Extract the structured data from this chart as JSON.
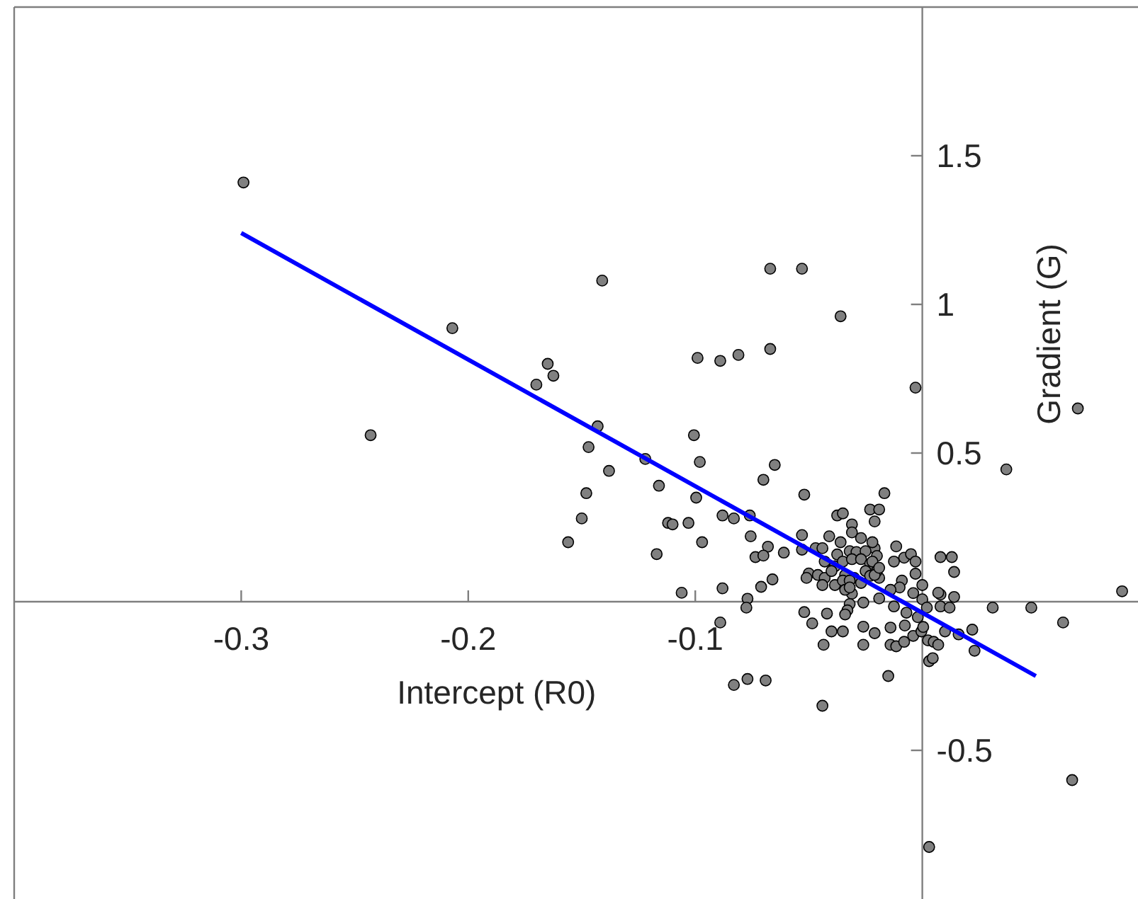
{
  "chart_data": {
    "type": "scatter",
    "xlabel": "Intercept (R0)",
    "ylabel": "Gradient (G)",
    "xlim": [
      -0.4,
      0.095
    ],
    "ylim": [
      -1,
      2
    ],
    "xticks": [
      -0.3,
      -0.2,
      -0.1
    ],
    "yticks": [
      -0.5,
      0.5,
      1,
      1.5
    ],
    "grid": false,
    "marker": "circle",
    "series": [
      {
        "color": "#808080",
        "x": [
          -0.299,
          -0.243,
          -0.207,
          -0.165,
          -0.1625,
          -0.17,
          -0.141,
          -0.143,
          -0.147,
          -0.1006,
          -0.099,
          -0.089,
          -0.081,
          -0.067,
          -0.067,
          -0.053,
          -0.036,
          -0.003,
          0.0685,
          -0.138,
          -0.122,
          -0.098,
          -0.065,
          -0.07,
          -0.148,
          -0.116,
          -0.0996,
          -0.052,
          -0.0167,
          -0.15,
          -0.156,
          -0.117,
          -0.112,
          -0.11,
          -0.103,
          -0.097,
          -0.088,
          -0.083,
          -0.076,
          -0.0756,
          -0.068,
          -0.0735,
          -0.07,
          -0.061,
          -0.066,
          -0.071,
          -0.088,
          -0.106,
          -0.077,
          -0.0775,
          -0.089,
          -0.083,
          -0.077,
          -0.069,
          -0.044,
          -0.052,
          -0.0485,
          -0.042,
          -0.04,
          -0.035,
          -0.0435,
          -0.026,
          -0.021,
          -0.026,
          -0.014,
          -0.014,
          -0.0115,
          -0.008,
          -0.015,
          -0.0077,
          -0.004,
          -0.0004,
          0.0004,
          0.0025,
          0.005,
          0.007,
          0.003,
          0.0046,
          0.01,
          0.016,
          0.022,
          0.023,
          0.031,
          0.048,
          0.062,
          0.088,
          0.037,
          0.008,
          0.013,
          0.014,
          0.014,
          0.008,
          0.007,
          0.008,
          0.012,
          0,
          -0.003,
          -0.004,
          0,
          0.002,
          -0.002,
          -0.007,
          -0.0125,
          -0.009,
          -0.01,
          -0.014,
          -0.019,
          -0.026,
          -0.031,
          -0.032,
          -0.033,
          -0.034,
          -0.0115,
          -0.0125,
          -0.008,
          -0.005,
          -0.003,
          -0.023,
          -0.019,
          -0.021,
          -0.0375,
          -0.035,
          -0.031,
          -0.031,
          -0.027,
          -0.021,
          -0.022,
          -0.036,
          -0.041,
          -0.053,
          -0.053,
          -0.047,
          -0.044,
          -0.0375,
          -0.032,
          -0.029,
          -0.025,
          -0.043,
          -0.0385,
          -0.035,
          -0.031,
          -0.027,
          -0.023,
          -0.02,
          -0.022,
          -0.05,
          -0.051,
          -0.046,
          -0.043,
          -0.04,
          -0.034,
          -0.03,
          -0.025,
          -0.023,
          -0.019,
          -0.02,
          -0.044,
          -0.0385,
          -0.035,
          -0.032,
          -0.027,
          -0.021,
          -0.034,
          -0.032,
          -0.019,
          0.066,
          0.003
        ],
        "values": [
          1.41,
          0.56,
          0.92,
          0.8,
          0.76,
          0.73,
          1.08,
          0.59,
          0.52,
          0.56,
          0.82,
          0.81,
          0.83,
          0.85,
          1.12,
          1.12,
          0.96,
          0.72,
          0.65,
          0.44,
          0.48,
          0.47,
          0.46,
          0.41,
          0.365,
          0.39,
          0.35,
          0.36,
          0.365,
          0.28,
          0.2,
          0.16,
          0.265,
          0.26,
          0.265,
          0.2,
          0.29,
          0.28,
          0.29,
          0.22,
          0.185,
          0.15,
          0.155,
          0.165,
          0.075,
          0.05,
          0.045,
          0.03,
          0.01,
          -0.02,
          -0.07,
          -0.28,
          -0.26,
          -0.265,
          -0.35,
          -0.035,
          -0.073,
          -0.04,
          -0.1,
          -0.1,
          -0.145,
          -0.084,
          -0.106,
          -0.145,
          -0.087,
          -0.145,
          -0.15,
          -0.135,
          -0.25,
          -0.08,
          -0.115,
          -0.1,
          -0.085,
          -0.13,
          -0.135,
          -0.145,
          -0.2,
          -0.19,
          -0.1,
          -0.11,
          -0.094,
          -0.165,
          -0.02,
          -0.02,
          -0.07,
          0.035,
          0.445,
          0.15,
          0.15,
          0.1,
          0.016,
          0.024,
          0.03,
          -0.016,
          -0.02,
          0.056,
          0.094,
          0.029,
          0.008,
          -0.02,
          -0.052,
          -0.037,
          -0.016,
          0.071,
          0.048,
          0.04,
          0.011,
          -0.003,
          0.027,
          -0.008,
          -0.029,
          -0.043,
          0.186,
          0.135,
          0.148,
          0.16,
          0.135,
          0.31,
          0.31,
          0.27,
          0.29,
          0.297,
          0.26,
          0.233,
          0.214,
          0.18,
          0.2,
          0.2,
          0.22,
          0.224,
          0.175,
          0.18,
          0.18,
          0.159,
          0.17,
          0.167,
          0.17,
          0.135,
          0.119,
          0.135,
          0.143,
          0.143,
          0.127,
          0.154,
          0.135,
          0.095,
          0.08,
          0.09,
          0.08,
          0.103,
          0.09,
          0.08,
          0.103,
          0.087,
          0.08,
          0.103,
          0.056,
          0.056,
          0.071,
          0.071,
          0.063,
          0.09,
          0.04,
          0.048,
          0.114,
          -0.6,
          -0.825
        ]
      },
      {
        "type": "line",
        "color": "#0000ff",
        "marker": "none",
        "line_style": "solid",
        "x": [
          -0.3,
          0.05
        ],
        "values": [
          1.24,
          -0.25
        ]
      }
    ]
  }
}
